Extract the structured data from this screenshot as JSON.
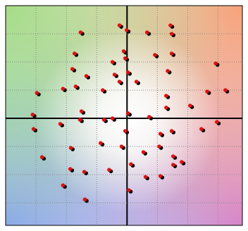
{
  "chart_data": {
    "type": "scatter",
    "xlim": [
      -4,
      3.8
    ],
    "ylim": [
      -3.8,
      4
    ],
    "xticks": [
      -3,
      -2,
      -1,
      0,
      1,
      2,
      3
    ],
    "yticks": [
      -3,
      -2,
      -1,
      0,
      1,
      2,
      3
    ],
    "grid": true,
    "series": [
      {
        "color": "#000000",
        "x": [
          -1.47,
          -0.19,
          0.05,
          0.72,
          1.49,
          1.53,
          -1.67,
          -0.05,
          0.98,
          1.53,
          2.98,
          -1.74,
          -1.28,
          -0.42,
          0,
          0.09,
          -0.35,
          1.4,
          0.37,
          -2.05,
          -1.63,
          -0.74,
          -0.19,
          -2.91,
          2.7,
          3.3,
          1.35,
          -3.05,
          -1.44,
          -0.7,
          -0.42,
          0.09,
          -1.49,
          0.79,
          1.35,
          2.14,
          2.51,
          3.02,
          -2.14,
          0,
          1.16,
          1.53,
          -3.02,
          -2.74,
          -1.79,
          -0.81,
          -0.12,
          0.6,
          1.12,
          1.58,
          1.58,
          1.86,
          -1.81,
          -1.35,
          -0.53,
          0.19,
          0.67,
          1.16,
          -2.05,
          0.12,
          -1.33
        ],
        "values": [
          3.0,
          3.25,
          3.08,
          3.0,
          3.25,
          2.95,
          2.25,
          2.33,
          2.2,
          2.25,
          1.9,
          1.7,
          1.45,
          1.95,
          2.08,
          1.58,
          1.5,
          1.63,
          1.25,
          1.0,
          1.08,
          0.95,
          1.25,
          0.85,
          0.9,
          0.95,
          0.75,
          0.08,
          0.2,
          -0.1,
          -0.05,
          0.13,
          -0.1,
          0,
          0.33,
          0.4,
          -0.43,
          -0.18,
          -0.25,
          -0.5,
          -0.6,
          -0.5,
          -0.43,
          -1.43,
          -1.1,
          -0.93,
          -1.05,
          -1.25,
          -1.05,
          -1.4,
          -1.7,
          -1.6,
          -1.85,
          -1.95,
          -1.88,
          -1.68,
          -2.13,
          -2.1,
          -2.43,
          -2.6,
          -2.93
        ]
      },
      {
        "color": "#e01010",
        "x": [
          -1.53,
          -0.25,
          -0.01,
          0.66,
          1.43,
          1.47,
          -1.73,
          -0.11,
          0.92,
          1.47,
          2.92,
          -1.8,
          -1.34,
          -0.48,
          -0.06,
          0.03,
          -0.41,
          1.34,
          0.31,
          -2.11,
          -1.69,
          -0.8,
          -0.25,
          -2.97,
          2.64,
          3.24,
          1.29,
          -3.11,
          -1.5,
          -0.76,
          -0.48,
          0.03,
          -1.55,
          0.73,
          1.29,
          2.08,
          2.45,
          2.96,
          -2.2,
          -0.06,
          1.1,
          1.47,
          -3.08,
          -2.8,
          -1.85,
          -0.87,
          -0.18,
          0.54,
          1.06,
          1.52,
          1.52,
          1.8,
          -1.87,
          -1.41,
          -0.59,
          0.13,
          0.61,
          1.1,
          -2.11,
          0.06,
          -1.39
        ],
        "values": [
          3.05,
          3.3,
          3.13,
          3.05,
          3.3,
          3.0,
          2.3,
          2.38,
          2.25,
          2.3,
          1.95,
          1.75,
          1.5,
          2.0,
          2.13,
          1.63,
          1.55,
          1.68,
          1.3,
          1.05,
          1.13,
          1.0,
          1.3,
          0.9,
          0.95,
          1.0,
          0.8,
          0.13,
          0.25,
          -0.05,
          0,
          0.18,
          -0.05,
          0.05,
          0.38,
          0.45,
          -0.38,
          -0.13,
          -0.2,
          -0.45,
          -0.55,
          -0.45,
          -0.38,
          -1.38,
          -1.05,
          -0.88,
          -1.0,
          -1.2,
          -1.0,
          -1.35,
          -1.65,
          -1.55,
          -1.8,
          -1.9,
          -1.83,
          -1.63,
          -2.08,
          -2.05,
          -2.38,
          -2.55,
          -2.88
        ]
      }
    ]
  }
}
